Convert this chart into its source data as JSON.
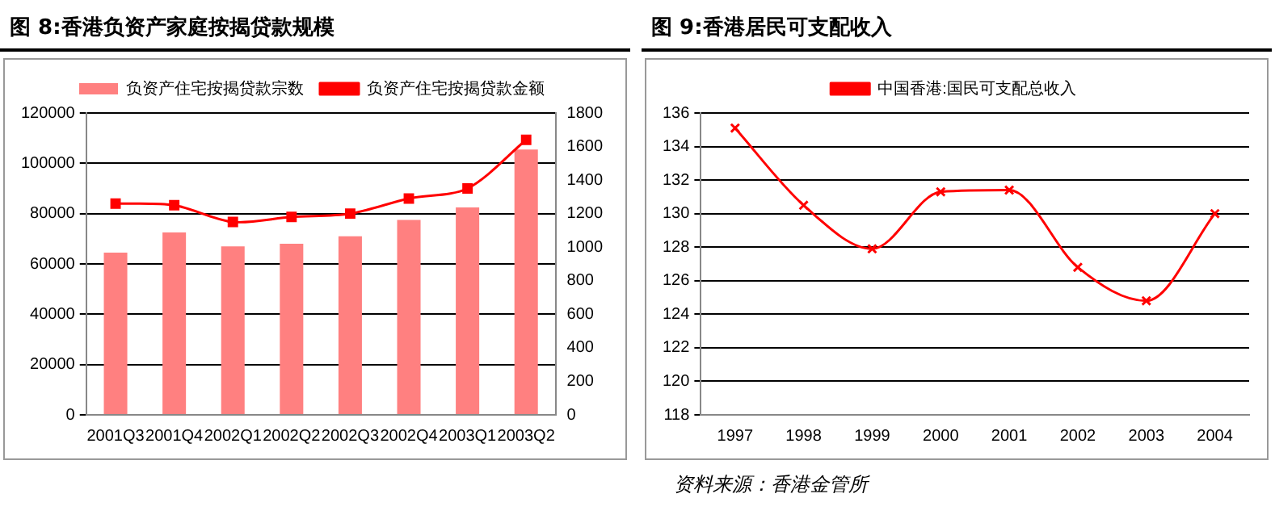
{
  "chart_data": [
    {
      "type": "bar",
      "title": "图 8:香港负资产家庭按揭贷款规模",
      "categories": [
        "2001Q3",
        "2001Q4",
        "2002Q1",
        "2002Q2",
        "2002Q3",
        "2002Q4",
        "2003Q1",
        "2003Q2"
      ],
      "series": [
        {
          "name": "负资产住宅按揭贷款宗数",
          "color": "#ff8080",
          "values": [
            64500,
            72500,
            67000,
            68000,
            71000,
            77500,
            82500,
            105500
          ]
        },
        {
          "name": "负资产住宅按揭贷款金额",
          "type": "line",
          "axis": "y2",
          "color": "#ff0000",
          "marker": "square",
          "values": [
            1260,
            1250,
            1150,
            1180,
            1200,
            1290,
            1350,
            1640
          ]
        }
      ],
      "ylim": [
        0,
        120000
      ],
      "yticks": [
        0,
        20000,
        40000,
        60000,
        80000,
        100000,
        120000
      ],
      "y2lim": [
        0,
        1800
      ],
      "y2ticks": [
        0,
        200,
        400,
        600,
        800,
        1000,
        1200,
        1400,
        1600,
        1800
      ],
      "grid": "y",
      "legend": "top"
    },
    {
      "type": "line",
      "title": "图 9:香港居民可支配收入",
      "categories": [
        "1997",
        "1998",
        "1999",
        "2000",
        "2001",
        "2002",
        "2003",
        "2004"
      ],
      "series": [
        {
          "name": "中国香港:国民可支配总收入",
          "color": "#ff0000",
          "values": [
            135.1,
            130.5,
            127.9,
            131.3,
            131.4,
            126.8,
            124.8,
            130.0
          ]
        }
      ],
      "ylim": [
        118,
        136
      ],
      "yticks": [
        118,
        120,
        122,
        124,
        126,
        128,
        130,
        132,
        134,
        136
      ],
      "grid": "y",
      "legend": "top",
      "marker": "cross",
      "annotations": [
        "资料来源：香港金管所"
      ]
    }
  ]
}
